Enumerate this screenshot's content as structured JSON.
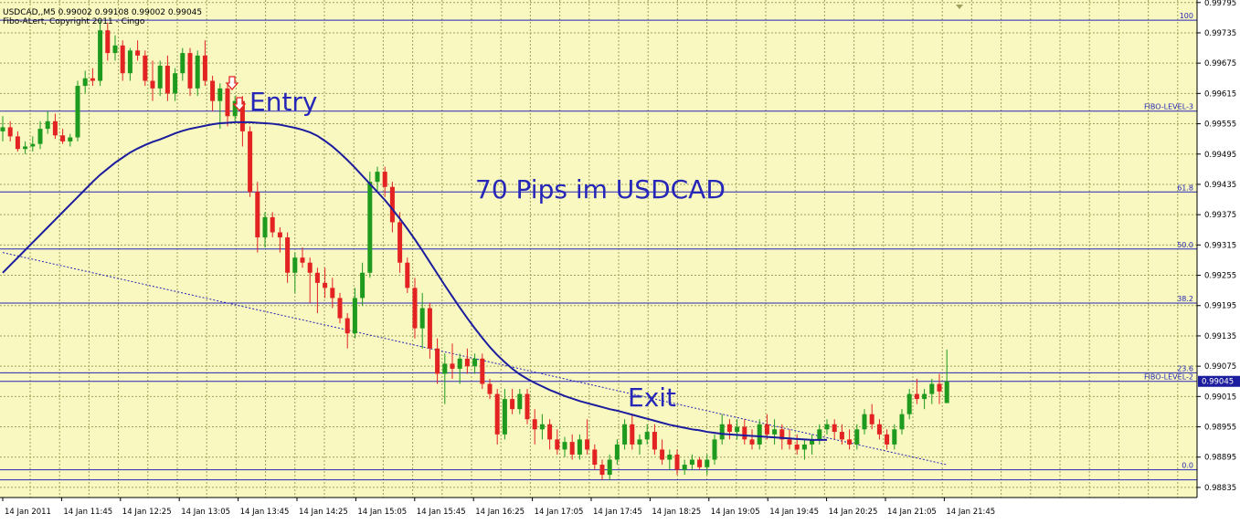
{
  "header": {
    "title_line": "USDCAD,,M5  0.99002 0.99108 0.99002 0.99045",
    "indicator_line": "Fibo-ALert, Copyright 2011 - Cingo"
  },
  "annotations": {
    "entry": "Entry",
    "headline": "70 Pips im USDCAD",
    "exit": "Exit"
  },
  "fib_levels": [
    {
      "label": "100",
      "price": 0.9976
    },
    {
      "label": "FIBO-LEVEL-3",
      "price": 0.9958
    },
    {
      "label": "61.8",
      "price": 0.9942
    },
    {
      "label": "50.0",
      "price": 0.99307
    },
    {
      "label": "38.2",
      "price": 0.992
    },
    {
      "label": "23.6",
      "price": 0.99062
    },
    {
      "label": "FIBO-LEVEL-2",
      "price": 0.99045
    },
    {
      "label": "0.0",
      "price": 0.9887
    }
  ],
  "current_price_label": "0.99045",
  "colors": {
    "background": "#f8f8c0",
    "grid": "#9ea05a",
    "bull": "#1e9a1e",
    "bear": "#e32222",
    "ma": "#1c1c9e",
    "fib": "#2626b8",
    "text_blue": "#2626b8",
    "arrow": "#e32222"
  },
  "chart_data": {
    "type": "candlestick",
    "symbol": "USDCAD",
    "timeframe": "M5",
    "ylim": [
      0.98815,
      0.998
    ],
    "y_ticks": [
      "0.99795",
      "0.99735",
      "0.99675",
      "0.99615",
      "0.99555",
      "0.99495",
      "0.99435",
      "0.99375",
      "0.99315",
      "0.99255",
      "0.99195",
      "0.99135",
      "0.99075",
      "0.99015",
      "0.98955",
      "0.98895",
      "0.98835"
    ],
    "x_ticks": [
      "14 Jan 2011",
      "14 Jan 11:45",
      "14 Jan 12:25",
      "14 Jan 13:05",
      "14 Jan 13:45",
      "14 Jan 14:25",
      "14 Jan 15:05",
      "14 Jan 15:45",
      "14 Jan 16:25",
      "14 Jan 17:05",
      "14 Jan 17:45",
      "14 Jan 18:25",
      "14 Jan 19:05",
      "14 Jan 19:45",
      "14 Jan 20:25",
      "14 Jan 21:05",
      "14 Jan 21:45"
    ],
    "candles": [
      [
        0.9954,
        0.9957,
        0.9952,
        0.99548
      ],
      [
        0.99548,
        0.9956,
        0.9952,
        0.9953
      ],
      [
        0.9953,
        0.9954,
        0.995,
        0.99505
      ],
      [
        0.99505,
        0.9952,
        0.99495,
        0.9951
      ],
      [
        0.9951,
        0.9953,
        0.995,
        0.99515
      ],
      [
        0.99515,
        0.9956,
        0.99505,
        0.99545
      ],
      [
        0.99545,
        0.9958,
        0.99535,
        0.9956
      ],
      [
        0.9956,
        0.99575,
        0.99525,
        0.99532
      ],
      [
        0.99532,
        0.99545,
        0.99515,
        0.9952
      ],
      [
        0.9952,
        0.99535,
        0.9951,
        0.99528
      ],
      [
        0.99528,
        0.9964,
        0.9952,
        0.9963
      ],
      [
        0.9963,
        0.9966,
        0.99615,
        0.99645
      ],
      [
        0.99645,
        0.99665,
        0.9963,
        0.9964
      ],
      [
        0.9964,
        0.9976,
        0.9963,
        0.9974
      ],
      [
        0.9974,
        0.99755,
        0.9968,
        0.99695
      ],
      [
        0.99695,
        0.9973,
        0.9968,
        0.9971
      ],
      [
        0.9971,
        0.9972,
        0.9964,
        0.99655
      ],
      [
        0.99655,
        0.99705,
        0.9964,
        0.997
      ],
      [
        0.997,
        0.9972,
        0.9968,
        0.9969
      ],
      [
        0.9969,
        0.997,
        0.9963,
        0.9964
      ],
      [
        0.9964,
        0.9968,
        0.996,
        0.99625
      ],
      [
        0.99625,
        0.9968,
        0.9961,
        0.9967
      ],
      [
        0.9967,
        0.9969,
        0.996,
        0.99615
      ],
      [
        0.99615,
        0.99665,
        0.996,
        0.99655
      ],
      [
        0.99655,
        0.99705,
        0.9964,
        0.99695
      ],
      [
        0.99695,
        0.99705,
        0.9961,
        0.99625
      ],
      [
        0.99625,
        0.997,
        0.9961,
        0.9969
      ],
      [
        0.9969,
        0.9972,
        0.9963,
        0.9964
      ],
      [
        0.9964,
        0.9965,
        0.9958,
        0.996
      ],
      [
        0.996,
        0.99635,
        0.99545,
        0.99625
      ],
      [
        0.99625,
        0.99635,
        0.9955,
        0.9957
      ],
      [
        0.9957,
        0.9961,
        0.9956,
        0.996
      ],
      [
        0.996,
        0.9961,
        0.9951,
        0.9954
      ],
      [
        0.9954,
        0.9955,
        0.9941,
        0.9942
      ],
      [
        0.9942,
        0.9944,
        0.993,
        0.9933
      ],
      [
        0.9933,
        0.9938,
        0.9931,
        0.9937
      ],
      [
        0.9937,
        0.9938,
        0.9933,
        0.9934
      ],
      [
        0.9934,
        0.9935,
        0.993,
        0.9933
      ],
      [
        0.9933,
        0.9934,
        0.9924,
        0.9926
      ],
      [
        0.9926,
        0.993,
        0.9922,
        0.9929
      ],
      [
        0.9929,
        0.9931,
        0.9927,
        0.9928
      ],
      [
        0.9928,
        0.9929,
        0.992,
        0.9926
      ],
      [
        0.9926,
        0.9927,
        0.9918,
        0.9924
      ],
      [
        0.9924,
        0.9927,
        0.9921,
        0.9923
      ],
      [
        0.9923,
        0.9925,
        0.9919,
        0.9921
      ],
      [
        0.9921,
        0.9922,
        0.9916,
        0.9917
      ],
      [
        0.9917,
        0.9918,
        0.9911,
        0.9914
      ],
      [
        0.9914,
        0.9923,
        0.9913,
        0.9921
      ],
      [
        0.9921,
        0.9928,
        0.99195,
        0.9926
      ],
      [
        0.9926,
        0.9946,
        0.9925,
        0.9944
      ],
      [
        0.9944,
        0.9947,
        0.9942,
        0.9946
      ],
      [
        0.9946,
        0.9947,
        0.9941,
        0.9943
      ],
      [
        0.9943,
        0.9944,
        0.9934,
        0.9936
      ],
      [
        0.9936,
        0.9938,
        0.9926,
        0.9928
      ],
      [
        0.9928,
        0.9929,
        0.9922,
        0.9923
      ],
      [
        0.9923,
        0.9925,
        0.9913,
        0.9915
      ],
      [
        0.9915,
        0.9922,
        0.9911,
        0.9919
      ],
      [
        0.9919,
        0.992,
        0.9909,
        0.9911
      ],
      [
        0.9911,
        0.9913,
        0.9904,
        0.9906
      ],
      [
        0.9906,
        0.991,
        0.99,
        0.9908
      ],
      [
        0.9908,
        0.9912,
        0.9905,
        0.9907
      ],
      [
        0.9907,
        0.991,
        0.9904,
        0.9909
      ],
      [
        0.9909,
        0.9911,
        0.9906,
        0.99075
      ],
      [
        0.99075,
        0.991,
        0.9906,
        0.9909
      ],
      [
        0.9909,
        0.991,
        0.9903,
        0.9904
      ],
      [
        0.9904,
        0.9905,
        0.9901,
        0.9902
      ],
      [
        0.9902,
        0.9903,
        0.9892,
        0.9894
      ],
      [
        0.9894,
        0.9903,
        0.9893,
        0.9901
      ],
      [
        0.9901,
        0.9903,
        0.9898,
        0.9899
      ],
      [
        0.9899,
        0.9903,
        0.9898,
        0.9902
      ],
      [
        0.9902,
        0.9903,
        0.9896,
        0.9897
      ],
      [
        0.9897,
        0.9899,
        0.9892,
        0.9895
      ],
      [
        0.9895,
        0.9898,
        0.9893,
        0.9896
      ],
      [
        0.9896,
        0.9897,
        0.9891,
        0.9893
      ],
      [
        0.9893,
        0.9895,
        0.989,
        0.9891
      ],
      [
        0.9891,
        0.98935,
        0.98895,
        0.98925
      ],
      [
        0.98925,
        0.9894,
        0.9889,
        0.989
      ],
      [
        0.989,
        0.9894,
        0.9889,
        0.9893
      ],
      [
        0.9893,
        0.9897,
        0.989,
        0.9891
      ],
      [
        0.9891,
        0.9892,
        0.9887,
        0.9888
      ],
      [
        0.9888,
        0.9889,
        0.9885,
        0.9886
      ],
      [
        0.9886,
        0.989,
        0.9885,
        0.9889
      ],
      [
        0.9889,
        0.9893,
        0.9888,
        0.9892
      ],
      [
        0.9892,
        0.9897,
        0.9891,
        0.9896
      ],
      [
        0.9896,
        0.9898,
        0.9891,
        0.9892
      ],
      [
        0.9892,
        0.9894,
        0.989,
        0.9893
      ],
      [
        0.9893,
        0.9896,
        0.9892,
        0.98945
      ],
      [
        0.98945,
        0.9896,
        0.989,
        0.9891
      ],
      [
        0.9891,
        0.9893,
        0.9888,
        0.9889
      ],
      [
        0.9889,
        0.9891,
        0.9887,
        0.989
      ],
      [
        0.989,
        0.9891,
        0.9886,
        0.9887
      ],
      [
        0.9887,
        0.9889,
        0.9886,
        0.9888
      ],
      [
        0.9888,
        0.989,
        0.9887,
        0.9889
      ],
      [
        0.9889,
        0.98895,
        0.9887,
        0.98875
      ],
      [
        0.98875,
        0.989,
        0.9886,
        0.9889
      ],
      [
        0.9889,
        0.9894,
        0.9888,
        0.9893
      ],
      [
        0.9893,
        0.9898,
        0.9892,
        0.9896
      ],
      [
        0.9896,
        0.9897,
        0.9893,
        0.98945
      ],
      [
        0.98945,
        0.9897,
        0.9893,
        0.98955
      ],
      [
        0.98955,
        0.9897,
        0.9892,
        0.9893
      ],
      [
        0.9893,
        0.9895,
        0.9891,
        0.9892
      ],
      [
        0.9892,
        0.9897,
        0.9891,
        0.9896
      ],
      [
        0.9896,
        0.9898,
        0.9893,
        0.9894
      ],
      [
        0.9894,
        0.9897,
        0.9892,
        0.9895
      ],
      [
        0.9895,
        0.9896,
        0.9891,
        0.9893
      ],
      [
        0.9893,
        0.9895,
        0.9891,
        0.9892
      ],
      [
        0.9892,
        0.9894,
        0.989,
        0.9891
      ],
      [
        0.9891,
        0.9893,
        0.9889,
        0.9892
      ],
      [
        0.9892,
        0.9894,
        0.989,
        0.9893
      ],
      [
        0.9893,
        0.9896,
        0.9892,
        0.9895
      ],
      [
        0.9895,
        0.9897,
        0.9894,
        0.9896
      ],
      [
        0.9896,
        0.9897,
        0.9893,
        0.98945
      ],
      [
        0.98945,
        0.9896,
        0.9892,
        0.9893
      ],
      [
        0.9893,
        0.9895,
        0.9891,
        0.9892
      ],
      [
        0.9892,
        0.9896,
        0.9891,
        0.9895
      ],
      [
        0.9895,
        0.9899,
        0.9894,
        0.9898
      ],
      [
        0.9898,
        0.99,
        0.9895,
        0.9896
      ],
      [
        0.9896,
        0.9897,
        0.9893,
        0.9894
      ],
      [
        0.9894,
        0.9895,
        0.9891,
        0.9892
      ],
      [
        0.9892,
        0.9896,
        0.9891,
        0.9895
      ],
      [
        0.9895,
        0.9899,
        0.9894,
        0.9898
      ],
      [
        0.9898,
        0.9903,
        0.9897,
        0.9902
      ],
      [
        0.9902,
        0.9905,
        0.99,
        0.9901
      ],
      [
        0.9901,
        0.9903,
        0.9899,
        0.9902
      ],
      [
        0.9902,
        0.9905,
        0.99,
        0.9904
      ],
      [
        0.9904,
        0.9906,
        0.99,
        0.99025
      ],
      [
        0.99002,
        0.99108,
        0.99002,
        0.99045
      ]
    ],
    "moving_average": [
      0.9926,
      0.99275,
      0.9929,
      0.99305,
      0.9932,
      0.99335,
      0.9935,
      0.99365,
      0.9938,
      0.99395,
      0.9941,
      0.99425,
      0.9944,
      0.99454,
      0.99466,
      0.99478,
      0.99488,
      0.99498,
      0.99506,
      0.99513,
      0.99519,
      0.99524,
      0.9953,
      0.99536,
      0.99541,
      0.99545,
      0.99548,
      0.99551,
      0.99554,
      0.99556,
      0.99557,
      0.99558,
      0.99558,
      0.99558,
      0.99557,
      0.99556,
      0.99555,
      0.99553,
      0.9955,
      0.99547,
      0.99543,
      0.99538,
      0.99531,
      0.99521,
      0.9951,
      0.99497,
      0.99483,
      0.99468,
      0.99452,
      0.99436,
      0.9942,
      0.99404,
      0.99386,
      0.99367,
      0.99347,
      0.99326,
      0.99304,
      0.99281,
      0.99258,
      0.99235,
      0.99213,
      0.99191,
      0.9917,
      0.9915,
      0.99131,
      0.99113,
      0.99097,
      0.99083,
      0.9907,
      0.99059,
      0.9905,
      0.99042,
      0.99035,
      0.99028,
      0.99022,
      0.99016,
      0.99011,
      0.99006,
      0.99002,
      0.98998,
      0.98994,
      0.9899,
      0.98987,
      0.98983,
      0.98979,
      0.98975,
      0.98971,
      0.98967,
      0.98963,
      0.98959,
      0.98956,
      0.98953,
      0.9895,
      0.98948,
      0.98945,
      0.98943,
      0.98941,
      0.9894,
      0.98939,
      0.98938,
      0.98937,
      0.98936,
      0.98935,
      0.98934,
      0.98933,
      0.98932,
      0.98931,
      0.9893,
      0.98929,
      0.98929,
      0.98929
    ],
    "trendline": {
      "start": {
        "bar": 0,
        "price": 0.993
      },
      "end": {
        "bar": 126,
        "price": 0.9888
      }
    },
    "grid": true
  }
}
